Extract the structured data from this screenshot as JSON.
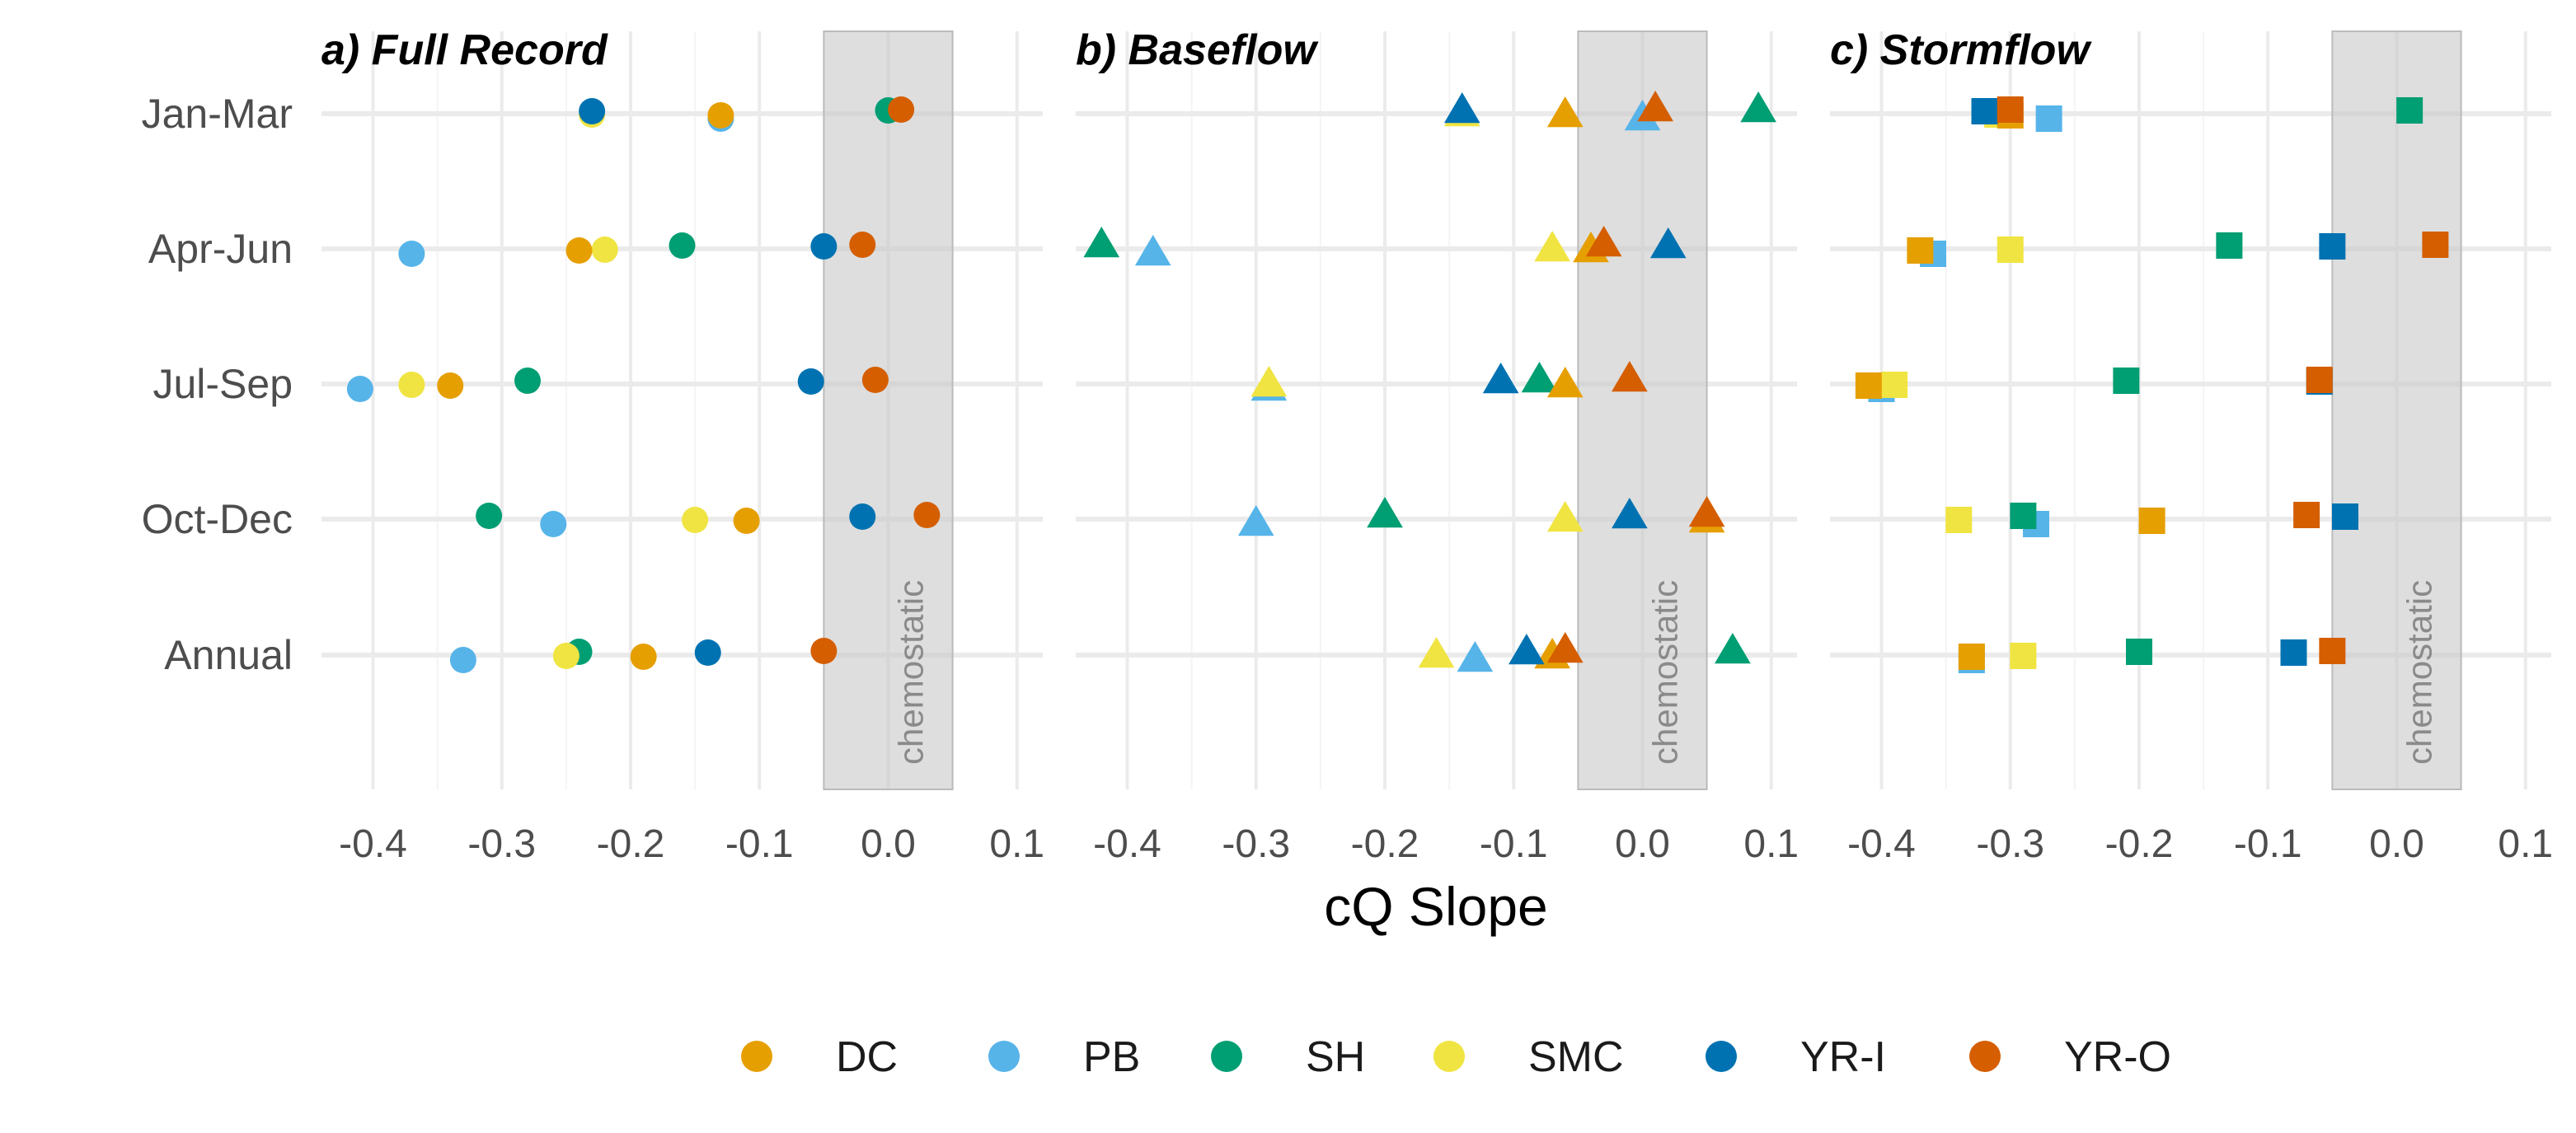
{
  "chart_data": {
    "type": "scatter",
    "xlabel": "cQ Slope",
    "xlim": [
      -0.44,
      0.12
    ],
    "x_ticks": [
      -0.4,
      -0.3,
      -0.2,
      -0.1,
      0.0,
      0.1
    ],
    "x_tick_labels": [
      "-0.4",
      "-0.3",
      "-0.2",
      "-0.1",
      "0.0",
      "0.1"
    ],
    "categories": [
      "Jan-Mar",
      "Apr-Jun",
      "Jul-Sep",
      "Oct-Dec",
      "Annual"
    ],
    "chemostatic_band": {
      "range": [
        -0.05,
        0.05
      ],
      "label": "chemostatic"
    },
    "grid": true,
    "legend_position": "bottom",
    "series": [
      {
        "name": "DC",
        "color": "#E69F00"
      },
      {
        "name": "PB",
        "color": "#56B4E9"
      },
      {
        "name": "SH",
        "color": "#009E73"
      },
      {
        "name": "SMC",
        "color": "#F0E442"
      },
      {
        "name": "YR-I",
        "color": "#0072B2"
      },
      {
        "name": "YR-O",
        "color": "#D55E00"
      }
    ],
    "panels": [
      {
        "title": "a) Full Record",
        "shape": "circle",
        "points": {
          "Jan-Mar": {
            "DC": -0.13,
            "PB": -0.13,
            "SH": 0.0,
            "SMC": -0.23,
            "YR-I": -0.23,
            "YR-O": 0.01
          },
          "Apr-Jun": {
            "DC": -0.24,
            "PB": -0.37,
            "SH": -0.16,
            "SMC": -0.22,
            "YR-I": -0.05,
            "YR-O": -0.02
          },
          "Jul-Sep": {
            "DC": -0.34,
            "PB": -0.41,
            "SH": -0.28,
            "SMC": -0.37,
            "YR-I": -0.06,
            "YR-O": -0.01
          },
          "Oct-Dec": {
            "DC": -0.11,
            "PB": -0.26,
            "SH": -0.31,
            "SMC": -0.15,
            "YR-I": -0.02,
            "YR-O": 0.03
          },
          "Annual": {
            "DC": -0.19,
            "PB": -0.33,
            "SH": -0.24,
            "SMC": -0.25,
            "YR-I": -0.14,
            "YR-O": -0.05
          }
        }
      },
      {
        "title": "b) Baseflow",
        "shape": "triangle",
        "points": {
          "Jan-Mar": {
            "DC": -0.06,
            "PB": 0.0,
            "SH": 0.09,
            "SMC": -0.14,
            "YR-I": -0.14,
            "YR-O": 0.01
          },
          "Apr-Jun": {
            "DC": -0.04,
            "PB": -0.38,
            "SH": -0.42,
            "SMC": -0.07,
            "YR-I": 0.02,
            "YR-O": -0.03
          },
          "Jul-Sep": {
            "DC": -0.06,
            "PB": -0.29,
            "SH": -0.08,
            "SMC": -0.29,
            "YR-I": -0.11,
            "YR-O": -0.01
          },
          "Oct-Dec": {
            "DC": 0.05,
            "PB": -0.3,
            "SH": -0.2,
            "SMC": -0.06,
            "YR-I": -0.01,
            "YR-O": 0.05
          },
          "Annual": {
            "DC": -0.07,
            "PB": -0.13,
            "SH": 0.07,
            "SMC": -0.16,
            "YR-I": -0.09,
            "YR-O": -0.06
          }
        }
      },
      {
        "title": "c) Stormflow",
        "shape": "square",
        "points": {
          "Jan-Mar": {
            "DC": -0.3,
            "PB": -0.27,
            "SH": 0.01,
            "SMC": -0.31,
            "YR-I": -0.32,
            "YR-O": -0.3
          },
          "Apr-Jun": {
            "DC": -0.37,
            "PB": -0.36,
            "SH": -0.13,
            "SMC": -0.3,
            "YR-I": -0.05,
            "YR-O": 0.03
          },
          "Jul-Sep": {
            "DC": -0.41,
            "PB": -0.4,
            "SH": -0.21,
            "SMC": -0.39,
            "YR-I": -0.06,
            "YR-O": -0.06
          },
          "Oct-Dec": {
            "DC": -0.19,
            "PB": -0.28,
            "SH": -0.29,
            "SMC": -0.34,
            "YR-I": -0.04,
            "YR-O": -0.07
          },
          "Annual": {
            "DC": -0.33,
            "PB": -0.33,
            "SH": -0.2,
            "SMC": -0.29,
            "YR-I": -0.08,
            "YR-O": -0.05
          }
        }
      }
    ]
  }
}
